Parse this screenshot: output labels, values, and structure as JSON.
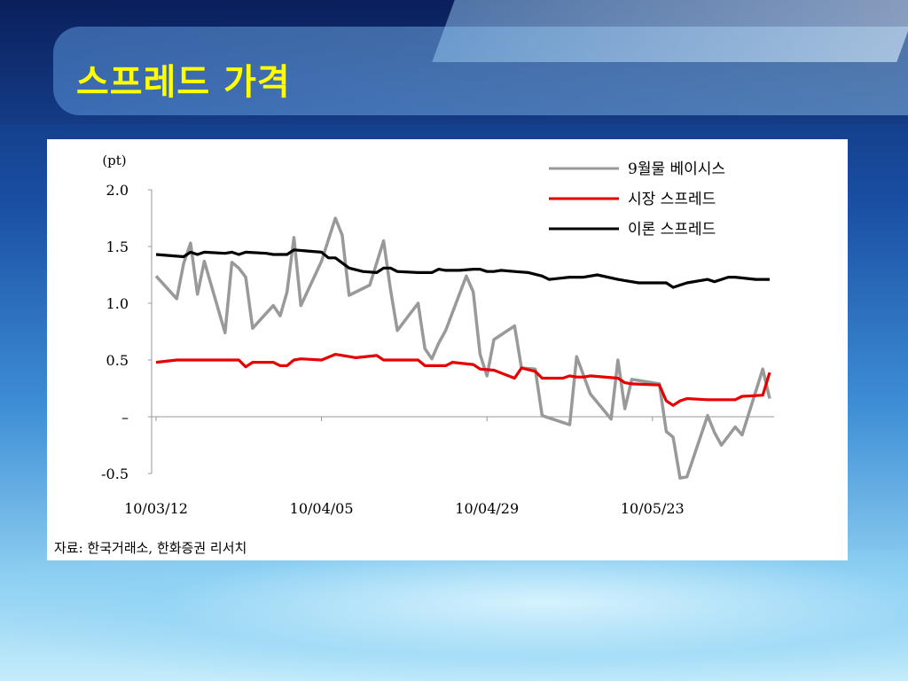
{
  "slide": {
    "title": "스프레드 가격",
    "source": "자료: 한국거래소, 한화증권 리서치"
  },
  "chart_data": {
    "type": "line",
    "unit_label": "(pt)",
    "x_tick_labels": [
      "10/03/12",
      "10/04/05",
      "10/04/29",
      "10/05/23"
    ],
    "x_tick_positions": [
      0,
      24,
      48,
      72
    ],
    "n_points": 90,
    "ylim": [
      -0.5,
      2.0
    ],
    "y_ticks": [
      2.0,
      1.5,
      1.0,
      0.5,
      0.0,
      -0.5
    ],
    "y_tick_labels": [
      "2.0",
      "1.5",
      "1.0",
      "0.5",
      "–",
      "-0.5"
    ],
    "grid": false,
    "legend_position": "top-right",
    "series": [
      {
        "name": "9월물 베이시스",
        "color": "#999999",
        "points": [
          [
            0,
            1.24
          ],
          [
            3,
            1.04
          ],
          [
            4,
            1.35
          ],
          [
            5,
            1.53
          ],
          [
            6,
            1.08
          ],
          [
            7,
            1.37
          ],
          [
            10,
            0.74
          ],
          [
            11,
            1.36
          ],
          [
            12,
            1.31
          ],
          [
            13,
            1.23
          ],
          [
            14,
            0.78
          ],
          [
            17,
            0.98
          ],
          [
            18,
            0.89
          ],
          [
            19,
            1.1
          ],
          [
            20,
            1.58
          ],
          [
            21,
            0.98
          ],
          [
            24,
            1.37
          ],
          [
            26,
            1.75
          ],
          [
            27,
            1.6
          ],
          [
            28,
            1.07
          ],
          [
            31,
            1.16
          ],
          [
            33,
            1.55
          ],
          [
            34,
            1.12
          ],
          [
            35,
            0.76
          ],
          [
            38,
            1.0
          ],
          [
            39,
            0.6
          ],
          [
            40,
            0.51
          ],
          [
            41,
            0.65
          ],
          [
            42,
            0.76
          ],
          [
            45,
            1.24
          ],
          [
            46,
            1.1
          ],
          [
            47,
            0.55
          ],
          [
            48,
            0.36
          ],
          [
            49,
            0.68
          ],
          [
            52,
            0.8
          ],
          [
            53,
            0.43
          ],
          [
            55,
            0.42
          ],
          [
            56,
            0.01
          ],
          [
            60,
            -0.07
          ],
          [
            61,
            0.53
          ],
          [
            63,
            0.2
          ],
          [
            66,
            -0.02
          ],
          [
            67,
            0.5
          ],
          [
            68,
            0.07
          ],
          [
            69,
            0.33
          ],
          [
            73,
            0.29
          ],
          [
            74,
            -0.13
          ],
          [
            75,
            -0.18
          ],
          [
            76,
            -0.54
          ],
          [
            77,
            -0.53
          ],
          [
            80,
            0.01
          ],
          [
            81,
            -0.14
          ],
          [
            82,
            -0.25
          ],
          [
            84,
            -0.09
          ],
          [
            85,
            -0.16
          ],
          [
            88,
            0.42
          ],
          [
            89,
            0.16
          ]
        ]
      },
      {
        "name": "시장 스프레드",
        "color": "#e60000",
        "points": [
          [
            0,
            0.48
          ],
          [
            3,
            0.5
          ],
          [
            12,
            0.5
          ],
          [
            13,
            0.44
          ],
          [
            14,
            0.48
          ],
          [
            17,
            0.48
          ],
          [
            18,
            0.45
          ],
          [
            19,
            0.45
          ],
          [
            20,
            0.5
          ],
          [
            21,
            0.51
          ],
          [
            24,
            0.5
          ],
          [
            26,
            0.55
          ],
          [
            29,
            0.52
          ],
          [
            32,
            0.54
          ],
          [
            33,
            0.5
          ],
          [
            38,
            0.5
          ],
          [
            39,
            0.45
          ],
          [
            42,
            0.45
          ],
          [
            43,
            0.48
          ],
          [
            46,
            0.46
          ],
          [
            47,
            0.42
          ],
          [
            49,
            0.41
          ],
          [
            52,
            0.34
          ],
          [
            53,
            0.43
          ],
          [
            55,
            0.4
          ],
          [
            56,
            0.34
          ],
          [
            59,
            0.34
          ],
          [
            60,
            0.36
          ],
          [
            61,
            0.35
          ],
          [
            62,
            0.35
          ],
          [
            63,
            0.36
          ],
          [
            67,
            0.34
          ],
          [
            68,
            0.3
          ],
          [
            69,
            0.29
          ],
          [
            73,
            0.28
          ],
          [
            74,
            0.14
          ],
          [
            75,
            0.1
          ],
          [
            76,
            0.14
          ],
          [
            77,
            0.16
          ],
          [
            80,
            0.15
          ],
          [
            84,
            0.15
          ],
          [
            85,
            0.18
          ],
          [
            88,
            0.19
          ],
          [
            89,
            0.39
          ]
        ]
      },
      {
        "name": "이론 스프레드",
        "color": "#000000",
        "points": [
          [
            0,
            1.43
          ],
          [
            4,
            1.41
          ],
          [
            5,
            1.45
          ],
          [
            6,
            1.43
          ],
          [
            7,
            1.45
          ],
          [
            10,
            1.44
          ],
          [
            11,
            1.45
          ],
          [
            12,
            1.43
          ],
          [
            13,
            1.45
          ],
          [
            16,
            1.44
          ],
          [
            17,
            1.43
          ],
          [
            19,
            1.43
          ],
          [
            20,
            1.47
          ],
          [
            22,
            1.46
          ],
          [
            24,
            1.45
          ],
          [
            25,
            1.4
          ],
          [
            26,
            1.4
          ],
          [
            28,
            1.31
          ],
          [
            30,
            1.28
          ],
          [
            32,
            1.27
          ],
          [
            33,
            1.31
          ],
          [
            34,
            1.31
          ],
          [
            35,
            1.28
          ],
          [
            38,
            1.27
          ],
          [
            40,
            1.27
          ],
          [
            41,
            1.3
          ],
          [
            42,
            1.29
          ],
          [
            44,
            1.29
          ],
          [
            46,
            1.3
          ],
          [
            47,
            1.3
          ],
          [
            48,
            1.28
          ],
          [
            49,
            1.28
          ],
          [
            50,
            1.29
          ],
          [
            52,
            1.28
          ],
          [
            54,
            1.27
          ],
          [
            56,
            1.24
          ],
          [
            57,
            1.21
          ],
          [
            60,
            1.23
          ],
          [
            62,
            1.23
          ],
          [
            64,
            1.25
          ],
          [
            67,
            1.21
          ],
          [
            68,
            1.2
          ],
          [
            70,
            1.18
          ],
          [
            74,
            1.18
          ],
          [
            75,
            1.14
          ],
          [
            76,
            1.16
          ],
          [
            77,
            1.18
          ],
          [
            80,
            1.21
          ],
          [
            81,
            1.19
          ],
          [
            83,
            1.23
          ],
          [
            84,
            1.23
          ],
          [
            87,
            1.21
          ],
          [
            89,
            1.21
          ]
        ]
      }
    ]
  }
}
